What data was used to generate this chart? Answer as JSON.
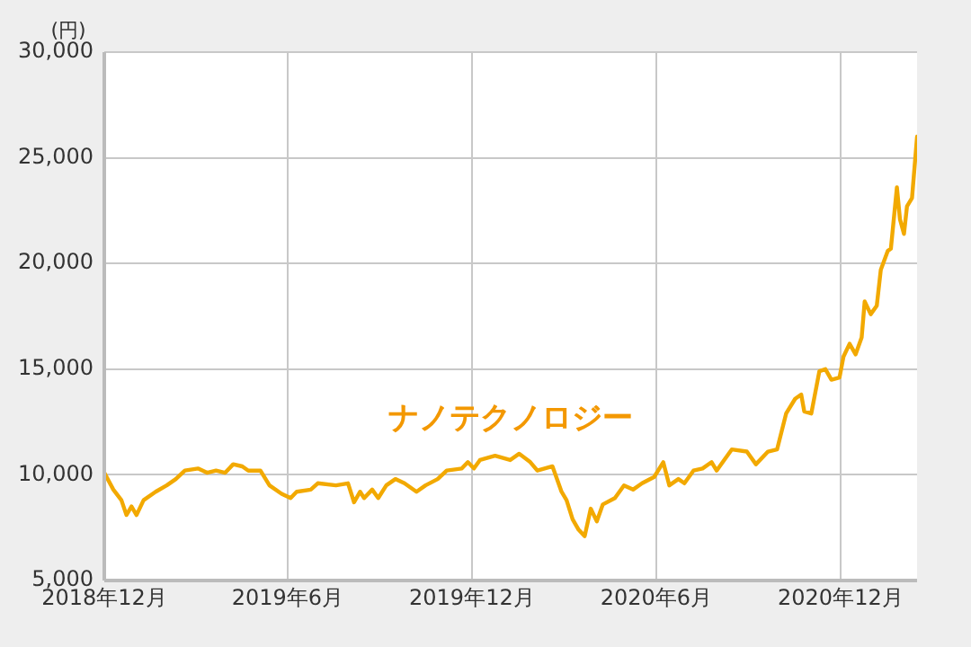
{
  "chart_data": {
    "type": "line",
    "ylabel": "(円)",
    "x": [
      "2018-12-01",
      "2018-12-10",
      "2018-12-18",
      "2018-12-23",
      "2018-12-28",
      "2019-01-02",
      "2019-01-09",
      "2019-01-21",
      "2019-02-01",
      "2019-02-10",
      "2019-02-19",
      "2019-03-04",
      "2019-03-13",
      "2019-03-22",
      "2019-03-31",
      "2019-04-08",
      "2019-04-17",
      "2019-04-23",
      "2019-05-05",
      "2019-05-14",
      "2019-05-26",
      "2019-06-04",
      "2019-06-10",
      "2019-06-24",
      "2019-07-01",
      "2019-07-19",
      "2019-07-31",
      "2019-08-06",
      "2019-08-12",
      "2019-08-16",
      "2019-08-24",
      "2019-08-30",
      "2019-09-07",
      "2019-09-16",
      "2019-09-25",
      "2019-10-07",
      "2019-10-16",
      "2019-10-28",
      "2019-11-06",
      "2019-11-21",
      "2019-11-27",
      "2019-12-03",
      "2019-12-09",
      "2019-12-24",
      "2020-01-08",
      "2020-01-17",
      "2020-01-28",
      "2020-02-04",
      "2020-02-19",
      "2020-02-28",
      "2020-03-04",
      "2020-03-10",
      "2020-03-16",
      "2020-03-22",
      "2020-03-28",
      "2020-04-03",
      "2020-04-09",
      "2020-04-21",
      "2020-04-30",
      "2020-05-09",
      "2020-05-18",
      "2020-05-30",
      "2020-06-08",
      "2020-06-14",
      "2020-06-23",
      "2020-06-29",
      "2020-07-08",
      "2020-07-17",
      "2020-07-26",
      "2020-07-31",
      "2020-08-15",
      "2020-08-30",
      "2020-09-08",
      "2020-09-20",
      "2020-09-29",
      "2020-10-08",
      "2020-10-17",
      "2020-10-23",
      "2020-10-26",
      "2020-11-02",
      "2020-11-10",
      "2020-11-16",
      "2020-11-22",
      "2020-11-30",
      "2020-12-04",
      "2020-12-10",
      "2020-12-16",
      "2020-12-22",
      "2020-12-25",
      "2020-12-31",
      "2021-01-06",
      "2021-01-10",
      "2021-01-17",
      "2021-01-20",
      "2021-01-26",
      "2021-01-29",
      "2021-02-02",
      "2021-02-05",
      "2021-02-10",
      "2021-02-15"
    ],
    "series": [
      {
        "name": "ナノテクノロジー",
        "color": "#f2a900",
        "values": [
          10100,
          9300,
          8800,
          8100,
          8500,
          8100,
          8800,
          9200,
          9500,
          9800,
          10200,
          10300,
          10100,
          10200,
          10100,
          10500,
          10400,
          10200,
          10200,
          9500,
          9100,
          8900,
          9200,
          9300,
          9600,
          9500,
          9600,
          8700,
          9200,
          8900,
          9300,
          8900,
          9500,
          9800,
          9600,
          9200,
          9500,
          9800,
          10200,
          10300,
          10600,
          10300,
          10700,
          10900,
          10700,
          11000,
          10600,
          10200,
          10400,
          9200,
          8800,
          7900,
          7400,
          7100,
          8400,
          7800,
          8600,
          8900,
          9500,
          9300,
          9600,
          9900,
          10600,
          9500,
          9800,
          9600,
          10200,
          10300,
          10600,
          10200,
          11200,
          11100,
          10500,
          11100,
          11200,
          12900,
          13600,
          13800,
          13000,
          12900,
          14900,
          15000,
          14500,
          14600,
          15600,
          16200,
          15700,
          16500,
          18200,
          17600,
          18000,
          19700,
          20600,
          20700,
          23600,
          22100,
          21400,
          22700,
          23100,
          26000
        ]
      }
    ],
    "xlim": [
      "2018-12-01",
      "2021-02-15"
    ],
    "xticks": [
      {
        "value": "2018-12-01",
        "label": "2018年12月"
      },
      {
        "value": "2019-06-01",
        "label": "2019年6月"
      },
      {
        "value": "2019-12-01",
        "label": "2019年12月"
      },
      {
        "value": "2020-06-01",
        "label": "2020年6月"
      },
      {
        "value": "2020-12-01",
        "label": "2020年12月"
      }
    ],
    "ylim": [
      5000,
      30000
    ],
    "yticks": [
      {
        "value": 5000,
        "label": "5,000"
      },
      {
        "value": 10000,
        "label": "10,000"
      },
      {
        "value": 15000,
        "label": "15,000"
      },
      {
        "value": 20000,
        "label": "20,000"
      },
      {
        "value": 25000,
        "label": "25,000"
      },
      {
        "value": 30000,
        "label": "30,000"
      }
    ],
    "grid": true,
    "legend": false,
    "marker": "none",
    "line_style": "solid"
  }
}
